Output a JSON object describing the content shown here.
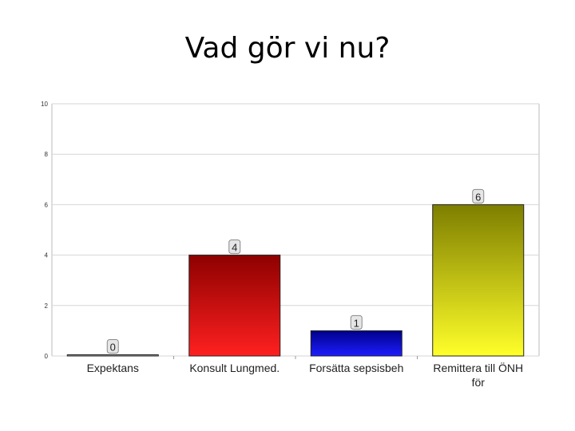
{
  "slide": {
    "title": "Vad gör vi nu?"
  },
  "chart_data": {
    "type": "bar",
    "title": "",
    "xlabel": "",
    "ylabel": "",
    "categories": [
      "Expektans",
      "Konsult Lungmed.",
      "Forsätta sepsisbeh",
      "Remittera till ÖNH för"
    ],
    "values": [
      0,
      4,
      1,
      6
    ],
    "data_labels": [
      "0",
      "4",
      "1",
      "6"
    ],
    "ylim": [
      0,
      10
    ],
    "yticks": [
      "0",
      "2",
      "4",
      "6",
      "8",
      "10"
    ],
    "grid": true,
    "legend": "none",
    "bar_colors": [
      {
        "top": "#a0a0a0",
        "bottom": "#c8c8c8"
      },
      {
        "top": "#8e0000",
        "bottom": "#ff2020"
      },
      {
        "top": "#00008a",
        "bottom": "#1d1dff"
      },
      {
        "top": "#7e7e00",
        "bottom": "#ffff2a"
      }
    ]
  }
}
